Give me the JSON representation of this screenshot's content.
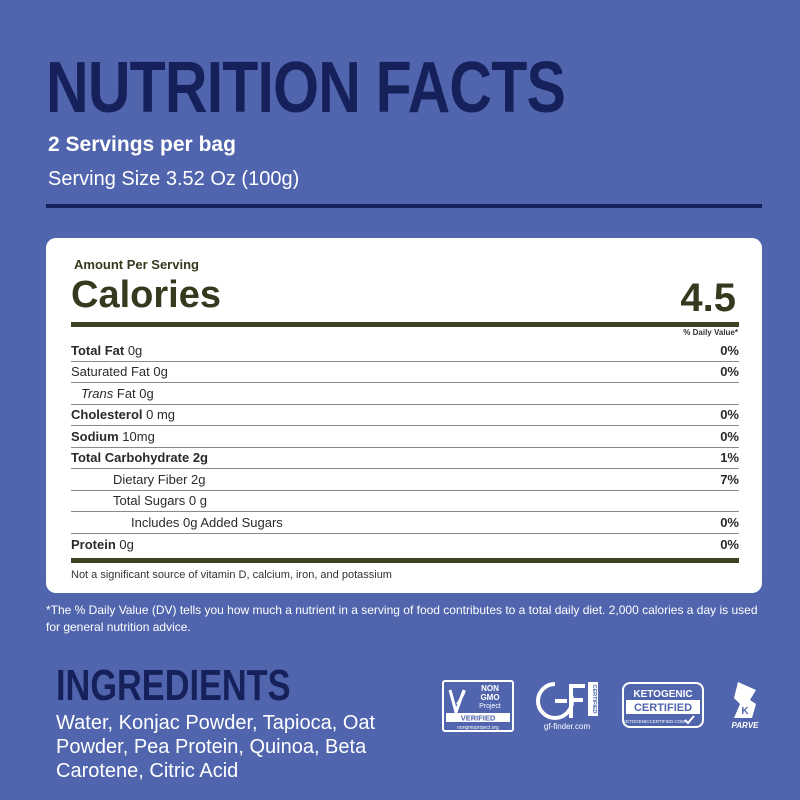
{
  "header": {
    "title": "NUTRITION FACTS",
    "servings": "2 Servings per bag",
    "serving_size": "Serving Size 3.52 Oz (100g)"
  },
  "panel": {
    "amount_per_serving": "Amount Per Serving",
    "calories_label": "Calories",
    "calories_value": "4.5",
    "daily_value_header": "% Daily Value*",
    "rows": [
      {
        "bold_label": "Total Fat",
        "label": " 0g",
        "dv": "0%"
      },
      {
        "bold_label": "",
        "label": "Saturated Fat 0g",
        "dv": "0%"
      },
      {
        "italic_label": "Trans",
        "label": " Fat 0g",
        "dv": ""
      },
      {
        "bold_label": "Cholesterol",
        "label": " 0 mg",
        "dv": "0%"
      },
      {
        "bold_label": "Sodium",
        "label": " 10mg",
        "dv": "0%"
      },
      {
        "bold_label": "Total Carbohydrate 2g",
        "label": "",
        "dv": "1%"
      },
      {
        "bold_label": "",
        "label": "Dietary Fiber 2g",
        "dv": "7%"
      },
      {
        "bold_label": "",
        "label": "Total Sugars 0 g",
        "dv": ""
      },
      {
        "bold_label": "",
        "label": "Includes 0g Added Sugars",
        "dv": "0%"
      },
      {
        "bold_label": "Protein",
        "label": " 0g",
        "dv": "0%"
      }
    ],
    "footnote": "Not a significant source of vitamin D, calcium, iron, and potassium"
  },
  "dv_note": "*The % Daily Value (DV) tells you how much a nutrient in a serving of food contributes to a total daily diet. 2,000 calories a day is used for general nutrition advice.",
  "ingredients": {
    "title": "INGREDIENTS",
    "text": "Water, Konjac Powder, Tapioca, Oat Powder, Pea Protein, Quinoa, Beta Carotene, Citric Acid"
  },
  "badges": {
    "nongmo": {
      "line1": "NON",
      "line2": "GMO",
      "line3": "Project",
      "verified": "VERIFIED",
      "url": "nongmoproject.org"
    },
    "gf": {
      "mark": "GF",
      "certified": "CERTIFIED",
      "url": "gf-finder.com"
    },
    "keto": {
      "line1": "KETOGENIC",
      "line2": "CERTIFIED",
      "url": "KETOGENICCERTIFIED.COM"
    },
    "parve": {
      "letter": "K",
      "label": "PARVE"
    }
  },
  "colors": {
    "background": "#5065ad",
    "title_navy": "#16205a",
    "panel_text": "#343a1e"
  }
}
